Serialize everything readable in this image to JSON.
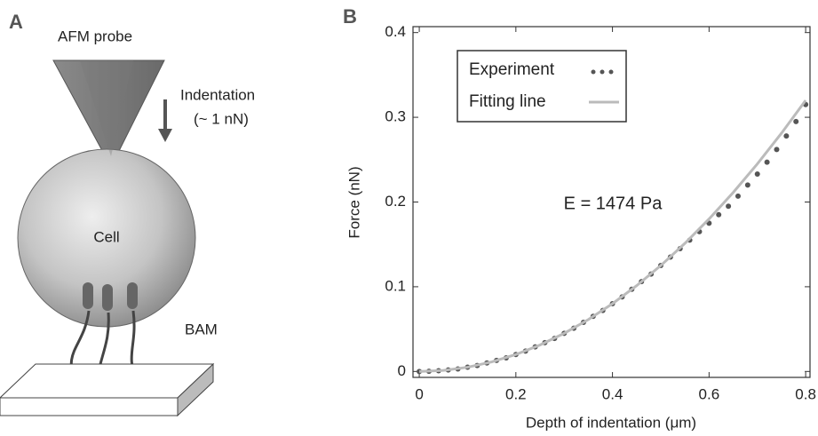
{
  "diagram": {
    "panel_label": "A",
    "probe_label": "AFM probe",
    "indentation_label": "Indentation",
    "force_label": "(~ 1 nN)",
    "cell_label": "Cell",
    "bam_label": "BAM"
  },
  "chart_data": {
    "type": "line",
    "panel_label": "B",
    "x_label": "Depth of indentation (μm)",
    "y_label": "Force (nN)",
    "annotation": "E = 1474 Pa",
    "xlim": [
      -0.013,
      0.809
    ],
    "ylim": [
      -0.007,
      0.407
    ],
    "xticks": [
      0,
      0.2,
      0.4,
      0.6,
      0.8
    ],
    "yticks": [
      0,
      0.1,
      0.2,
      0.3,
      0.4
    ],
    "legend": "upper left",
    "series": [
      {
        "name": "Experiment",
        "mode": "markers",
        "color": "#555555",
        "x": [
          0,
          0.02,
          0.04,
          0.06,
          0.08,
          0.1,
          0.12,
          0.14,
          0.16,
          0.18,
          0.2,
          0.22,
          0.24,
          0.26,
          0.28,
          0.3,
          0.32,
          0.34,
          0.36,
          0.38,
          0.4,
          0.42,
          0.44,
          0.46,
          0.48,
          0.5,
          0.52,
          0.54,
          0.56,
          0.58,
          0.6,
          0.62,
          0.64,
          0.66,
          0.68,
          0.7,
          0.72,
          0.74,
          0.76,
          0.78,
          0.8
        ],
        "values": [
          0,
          0.0002,
          0.0008,
          0.0018,
          0.003,
          0.005,
          0.007,
          0.01,
          0.013,
          0.016,
          0.02,
          0.024,
          0.029,
          0.034,
          0.039,
          0.045,
          0.051,
          0.058,
          0.065,
          0.072,
          0.08,
          0.088,
          0.097,
          0.106,
          0.115,
          0.125,
          0.135,
          0.145,
          0.155,
          0.165,
          0.175,
          0.185,
          0.195,
          0.207,
          0.22,
          0.233,
          0.247,
          0.262,
          0.278,
          0.295,
          0.315
        ]
      },
      {
        "name": "Fitting line",
        "mode": "line",
        "color": "#bbbbbb",
        "x": [
          0,
          0.05,
          0.1,
          0.15,
          0.2,
          0.25,
          0.3,
          0.35,
          0.4,
          0.45,
          0.5,
          0.55,
          0.6,
          0.65,
          0.7,
          0.75,
          0.8
        ],
        "values": [
          0,
          0.00125,
          0.005,
          0.01125,
          0.02,
          0.03125,
          0.045,
          0.06125,
          0.08,
          0.10125,
          0.125,
          0.15125,
          0.18,
          0.21125,
          0.245,
          0.28125,
          0.32
        ]
      }
    ]
  }
}
